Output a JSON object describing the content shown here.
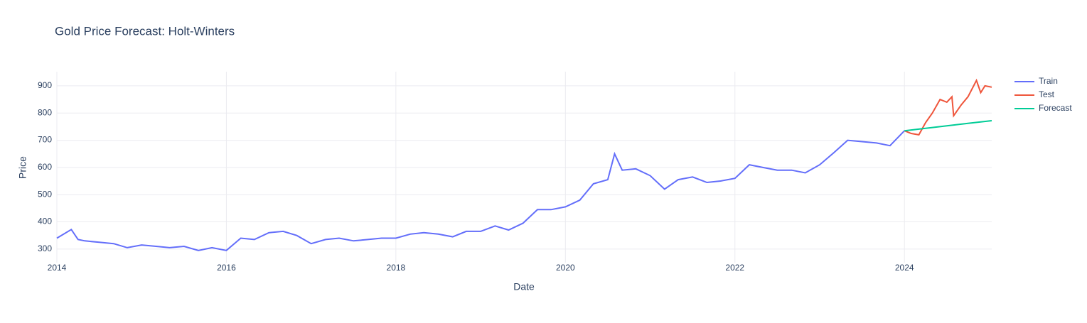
{
  "chart_data": {
    "type": "line",
    "title": "Gold Price Forecast: Holt-Winters",
    "x_label": "Date",
    "y_label": "Price",
    "xlim": [
      2014,
      2025.03
    ],
    "xticks": [
      2014,
      2016,
      2018,
      2020,
      2022,
      2024
    ],
    "ylim": [
      250,
      952
    ],
    "yticks": [
      300,
      400,
      500,
      600,
      700,
      800,
      900
    ],
    "grid": true,
    "legend": "right",
    "series": [
      {
        "name": "Train",
        "color": "#636efa",
        "x": [
          2014.0,
          2014.17,
          2014.25,
          2014.33,
          2014.5,
          2014.67,
          2014.83,
          2015.0,
          2015.17,
          2015.33,
          2015.5,
          2015.67,
          2015.83,
          2016.0,
          2016.17,
          2016.33,
          2016.5,
          2016.67,
          2016.83,
          2017.0,
          2017.17,
          2017.33,
          2017.5,
          2017.67,
          2017.83,
          2018.0,
          2018.17,
          2018.33,
          2018.5,
          2018.67,
          2018.83,
          2019.0,
          2019.17,
          2019.33,
          2019.5,
          2019.67,
          2019.83,
          2020.0,
          2020.17,
          2020.33,
          2020.5,
          2020.58,
          2020.67,
          2020.83,
          2021.0,
          2021.17,
          2021.33,
          2021.5,
          2021.67,
          2021.83,
          2022.0,
          2022.17,
          2022.33,
          2022.5,
          2022.67,
          2022.83,
          2023.0,
          2023.17,
          2023.33,
          2023.5,
          2023.67,
          2023.83,
          2024.0
        ],
        "values": [
          340,
          372,
          335,
          330,
          325,
          320,
          305,
          315,
          310,
          305,
          310,
          295,
          305,
          295,
          340,
          335,
          360,
          365,
          350,
          320,
          335,
          340,
          330,
          335,
          340,
          340,
          355,
          360,
          355,
          345,
          365,
          365,
          385,
          370,
          395,
          445,
          445,
          455,
          480,
          540,
          555,
          650,
          590,
          595,
          570,
          520,
          555,
          565,
          545,
          550,
          560,
          610,
          600,
          590,
          590,
          580,
          610,
          655,
          700,
          695,
          690,
          680,
          735
        ]
      },
      {
        "name": "Test",
        "color": "#EF553B",
        "x": [
          2024.0,
          2024.08,
          2024.17,
          2024.25,
          2024.33,
          2024.42,
          2024.5,
          2024.56,
          2024.58,
          2024.67,
          2024.75,
          2024.85,
          2024.9,
          2024.95,
          2025.03
        ],
        "values": [
          735,
          725,
          720,
          765,
          800,
          850,
          840,
          860,
          790,
          830,
          860,
          920,
          875,
          900,
          895
        ]
      },
      {
        "name": "Forecast",
        "color": "#00cc96",
        "x": [
          2024.0,
          2024.25,
          2024.5,
          2024.75,
          2025.03
        ],
        "values": [
          735,
          744,
          753,
          762,
          772
        ]
      }
    ]
  }
}
